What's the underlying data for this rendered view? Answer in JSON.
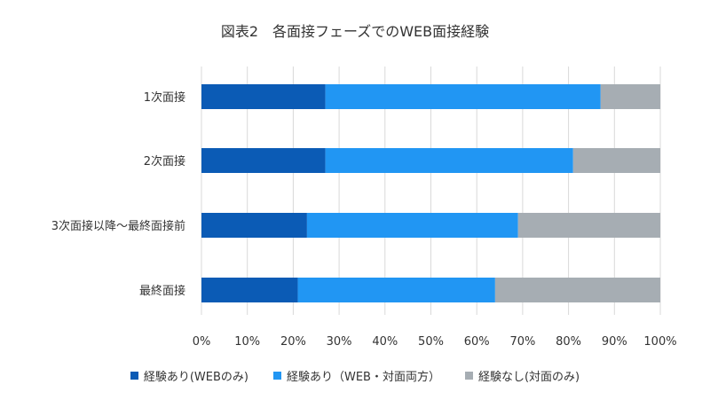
{
  "chart_data": {
    "type": "bar",
    "orientation": "horizontal",
    "stacked": true,
    "title": "図表2　各面接フェーズでのWEB面接経験",
    "categories": [
      "1次面接",
      "2次面接",
      "3次面接以降～最終面接前",
      "最終面接"
    ],
    "series": [
      {
        "name": "経験あり(WEBのみ)",
        "color": "#0b5bb5",
        "values": [
          27,
          27,
          23,
          21
        ]
      },
      {
        "name": "経験あり（WEB・対面両方）",
        "color": "#2196f3",
        "values": [
          60,
          54,
          46,
          43
        ]
      },
      {
        "name": "経験なし(対面のみ)",
        "color": "#a6adb3",
        "values": [
          13,
          19,
          31,
          36
        ]
      }
    ],
    "xlim": [
      0,
      100
    ],
    "xticks": [
      "0%",
      "10%",
      "20%",
      "30%",
      "40%",
      "50%",
      "60%",
      "70%",
      "80%",
      "90%",
      "100%"
    ],
    "grid": true,
    "legend_position": "bottom"
  }
}
